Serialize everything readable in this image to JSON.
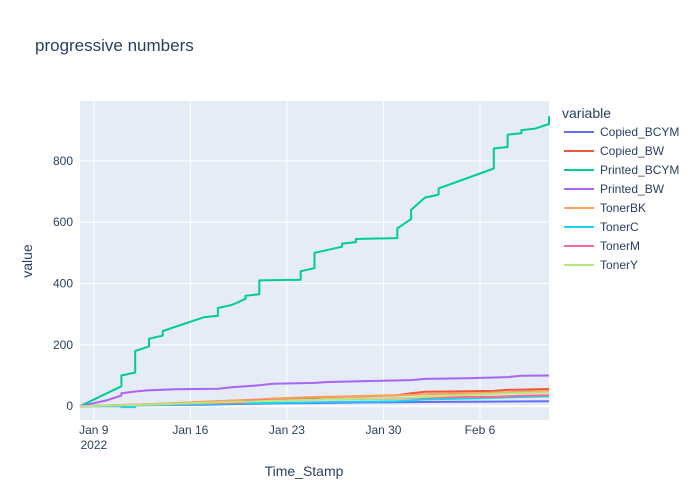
{
  "chart_data": {
    "type": "line",
    "title": "progressive numbers",
    "xlabel": "Time_Stamp",
    "ylabel": "value",
    "x_range": [
      "2022-01-08",
      "2022-02-11"
    ],
    "ylim": [
      -45,
      995
    ],
    "x_ticks": [
      {
        "date": "2022-01-09",
        "label": "Jan 9",
        "sublabel": "2022"
      },
      {
        "date": "2022-01-16",
        "label": "Jan 16",
        "sublabel": ""
      },
      {
        "date": "2022-01-23",
        "label": "Jan 23",
        "sublabel": ""
      },
      {
        "date": "2022-01-30",
        "label": "Jan 30",
        "sublabel": ""
      },
      {
        "date": "2022-02-06",
        "label": "Feb 6",
        "sublabel": ""
      }
    ],
    "y_ticks": [
      0,
      200,
      400,
      600,
      800
    ],
    "grid": true,
    "legend": {
      "title": "variable",
      "position": "right"
    },
    "series": [
      {
        "name": "Copied_BCYM",
        "color": "#636efa",
        "points": [
          [
            "2022-01-08",
            0
          ],
          [
            "2022-01-12",
            3
          ],
          [
            "2022-01-17",
            5
          ],
          [
            "2022-01-19",
            7
          ],
          [
            "2022-01-22",
            9
          ],
          [
            "2022-01-25",
            10
          ],
          [
            "2022-01-28",
            12
          ],
          [
            "2022-01-31",
            13
          ],
          [
            "2022-02-03",
            14
          ],
          [
            "2022-02-07",
            15
          ],
          [
            "2022-02-11",
            16
          ]
        ]
      },
      {
        "name": "Copied_BW",
        "color": "#EF553B",
        "points": [
          [
            "2022-01-08",
            0
          ],
          [
            "2022-01-11",
            4
          ],
          [
            "2022-01-14",
            8
          ],
          [
            "2022-01-17",
            14
          ],
          [
            "2022-01-20",
            20
          ],
          [
            "2022-01-23",
            25
          ],
          [
            "2022-01-26",
            30
          ],
          [
            "2022-01-29",
            33
          ],
          [
            "2022-01-31",
            36
          ],
          [
            "2022-02-01",
            42
          ],
          [
            "2022-02-02",
            47
          ],
          [
            "2022-02-05",
            49
          ],
          [
            "2022-02-07",
            50
          ],
          [
            "2022-02-08",
            53
          ],
          [
            "2022-02-11",
            56
          ]
        ]
      },
      {
        "name": "Printed_BCYM",
        "color": "#00cc96",
        "points": [
          [
            "2022-01-08",
            0
          ],
          [
            "2022-01-11",
            65
          ],
          [
            "2022-01-11",
            100
          ],
          [
            "2022-01-12",
            110
          ],
          [
            "2022-01-12",
            180
          ],
          [
            "2022-01-13",
            195
          ],
          [
            "2022-01-13",
            220
          ],
          [
            "2022-01-14",
            230
          ],
          [
            "2022-01-14",
            245
          ],
          [
            "2022-01-17",
            290
          ],
          [
            "2022-01-18",
            295
          ],
          [
            "2022-01-18",
            320
          ],
          [
            "2022-01-19",
            330
          ],
          [
            "2022-01-20",
            350
          ],
          [
            "2022-01-20",
            360
          ],
          [
            "2022-01-21",
            365
          ],
          [
            "2022-01-21",
            410
          ],
          [
            "2022-01-24",
            412
          ],
          [
            "2022-01-24",
            440
          ],
          [
            "2022-01-25",
            450
          ],
          [
            "2022-01-25",
            500
          ],
          [
            "2022-01-26",
            510
          ],
          [
            "2022-01-27",
            520
          ],
          [
            "2022-01-27",
            530
          ],
          [
            "2022-01-28",
            535
          ],
          [
            "2022-01-28",
            545
          ],
          [
            "2022-01-31",
            548
          ],
          [
            "2022-01-31",
            580
          ],
          [
            "2022-02-01",
            610
          ],
          [
            "2022-02-01",
            640
          ],
          [
            "2022-02-02",
            680
          ],
          [
            "2022-02-03",
            690
          ],
          [
            "2022-02-03",
            710
          ],
          [
            "2022-02-07",
            775
          ],
          [
            "2022-02-07",
            840
          ],
          [
            "2022-02-08",
            845
          ],
          [
            "2022-02-08",
            885
          ],
          [
            "2022-02-09",
            890
          ],
          [
            "2022-02-09",
            900
          ],
          [
            "2022-02-10",
            905
          ],
          [
            "2022-02-11",
            920
          ],
          [
            "2022-02-11",
            945
          ]
        ]
      },
      {
        "name": "Printed_BW",
        "color": "#ab63fa",
        "points": [
          [
            "2022-01-08",
            0
          ],
          [
            "2022-01-10",
            20
          ],
          [
            "2022-01-11",
            35
          ],
          [
            "2022-01-11",
            42
          ],
          [
            "2022-01-12",
            48
          ],
          [
            "2022-01-13",
            52
          ],
          [
            "2022-01-15",
            55
          ],
          [
            "2022-01-18",
            57
          ],
          [
            "2022-01-19",
            62
          ],
          [
            "2022-01-21",
            68
          ],
          [
            "2022-01-22",
            73
          ],
          [
            "2022-01-25",
            76
          ],
          [
            "2022-01-26",
            79
          ],
          [
            "2022-01-29",
            82
          ],
          [
            "2022-02-01",
            85
          ],
          [
            "2022-02-02",
            89
          ],
          [
            "2022-02-05",
            91
          ],
          [
            "2022-02-08",
            95
          ],
          [
            "2022-02-09",
            99
          ],
          [
            "2022-02-11",
            100
          ]
        ]
      },
      {
        "name": "TonerBK",
        "color": "#FFA15A",
        "points": [
          [
            "2022-01-08",
            0
          ],
          [
            "2022-01-12",
            5
          ],
          [
            "2022-01-15",
            10
          ],
          [
            "2022-01-17",
            15
          ],
          [
            "2022-01-20",
            20
          ],
          [
            "2022-01-22",
            25
          ],
          [
            "2022-01-25",
            30
          ],
          [
            "2022-01-28",
            33
          ],
          [
            "2022-01-31",
            36
          ],
          [
            "2022-02-03",
            40
          ],
          [
            "2022-02-07",
            44
          ],
          [
            "2022-02-09",
            47
          ],
          [
            "2022-02-11",
            50
          ]
        ]
      },
      {
        "name": "TonerC",
        "color": "#19d3f3",
        "points": [
          [
            "2022-01-08",
            0
          ],
          [
            "2022-01-11",
            0
          ],
          [
            "2022-01-11",
            -3
          ],
          [
            "2022-01-12",
            -3
          ],
          [
            "2022-01-12",
            3
          ],
          [
            "2022-01-15",
            5
          ],
          [
            "2022-01-18",
            8
          ],
          [
            "2022-01-21",
            10
          ],
          [
            "2022-01-24",
            12
          ],
          [
            "2022-01-27",
            14
          ],
          [
            "2022-01-31",
            16
          ],
          [
            "2022-02-02",
            22
          ],
          [
            "2022-02-06",
            26
          ],
          [
            "2022-02-09",
            30
          ],
          [
            "2022-02-11",
            32
          ]
        ]
      },
      {
        "name": "TonerM",
        "color": "#FF6692",
        "points": [
          [
            "2022-01-08",
            0
          ],
          [
            "2022-01-12",
            4
          ],
          [
            "2022-01-15",
            8
          ],
          [
            "2022-01-17",
            10
          ],
          [
            "2022-01-20",
            12
          ],
          [
            "2022-01-20",
            18
          ],
          [
            "2022-01-23",
            20
          ],
          [
            "2022-01-26",
            22
          ],
          [
            "2022-01-29",
            24
          ],
          [
            "2022-01-31",
            25
          ],
          [
            "2022-02-02",
            28
          ],
          [
            "2022-02-05",
            30
          ],
          [
            "2022-02-07",
            31
          ],
          [
            "2022-02-09",
            34
          ],
          [
            "2022-02-11",
            36
          ]
        ]
      },
      {
        "name": "TonerY",
        "color": "#B6E880",
        "points": [
          [
            "2022-01-08",
            0
          ],
          [
            "2022-01-11",
            3
          ],
          [
            "2022-01-14",
            7
          ],
          [
            "2022-01-17",
            11
          ],
          [
            "2022-01-20",
            15
          ],
          [
            "2022-01-23",
            19
          ],
          [
            "2022-01-26",
            22
          ],
          [
            "2022-01-29",
            25
          ],
          [
            "2022-02-01",
            28
          ],
          [
            "2022-02-04",
            35
          ],
          [
            "2022-02-07",
            40
          ],
          [
            "2022-02-09",
            43
          ],
          [
            "2022-02-11",
            45
          ]
        ]
      }
    ]
  }
}
